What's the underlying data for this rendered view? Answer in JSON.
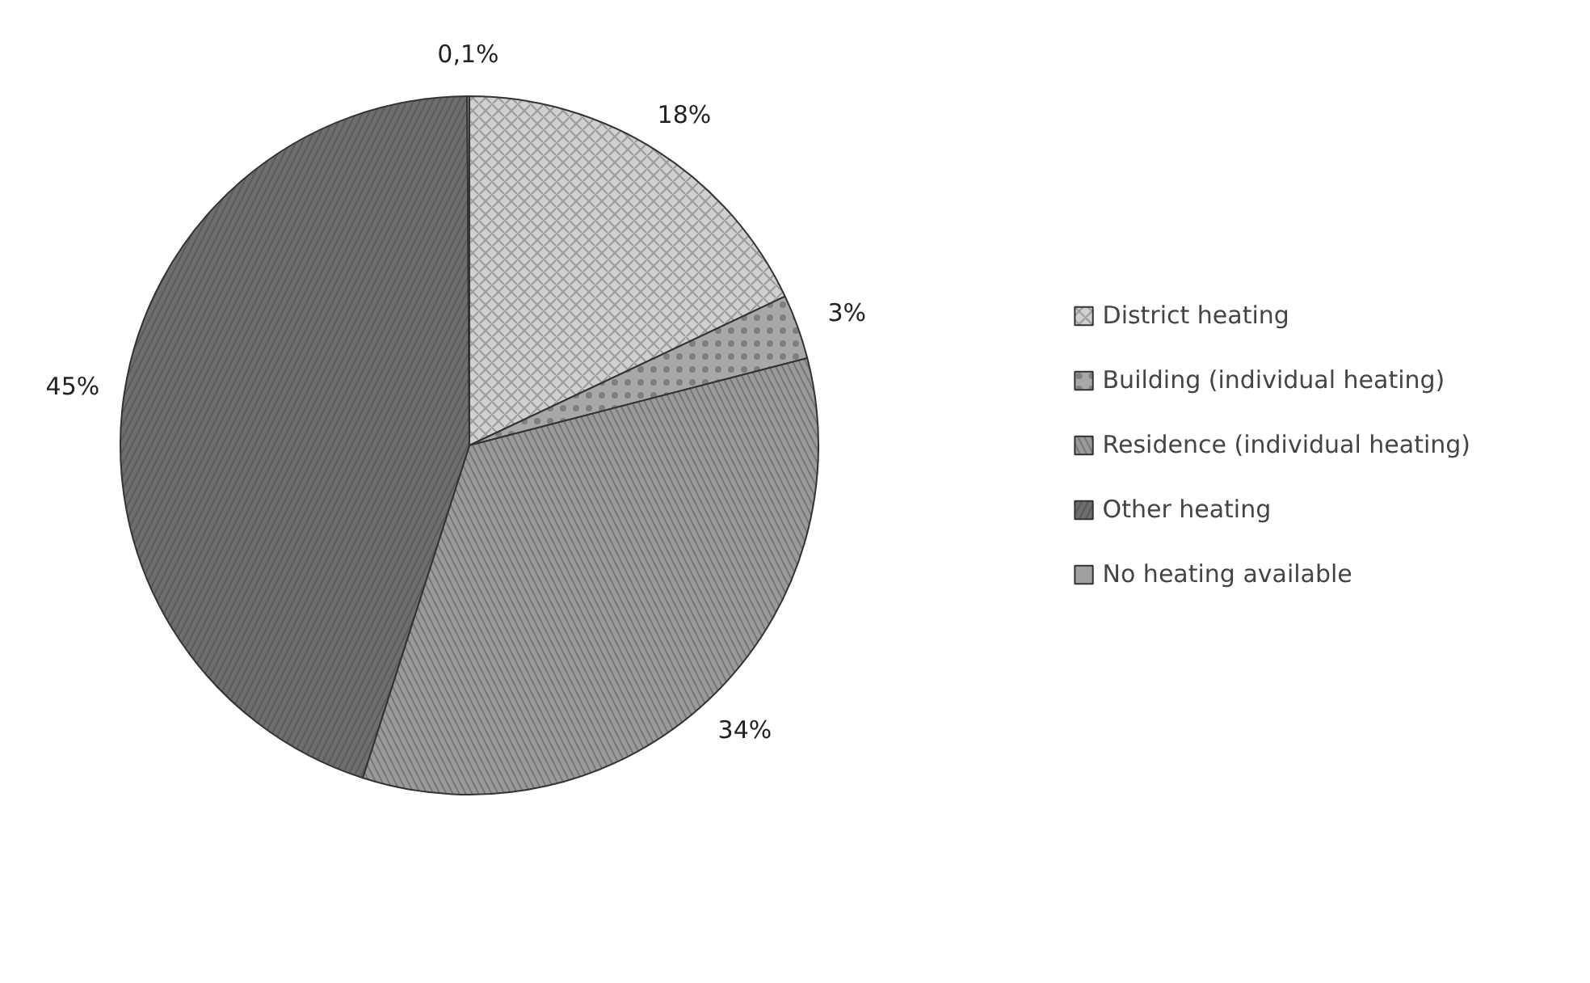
{
  "chart_data": {
    "type": "pie",
    "categories": [
      "District heating",
      "Building (individual heating)",
      "Residence (individual heating)",
      "Other heating",
      "No heating available"
    ],
    "values": [
      18,
      3,
      34,
      45,
      0.1
    ],
    "value_labels": [
      "18%",
      "3%",
      "34%",
      "45%",
      "0,1%"
    ],
    "colors": [
      "#d0d0d0",
      "#a8a8a8",
      "#9a9a9a",
      "#6e6e6e",
      "#a0a0a0"
    ],
    "legend": "right"
  }
}
